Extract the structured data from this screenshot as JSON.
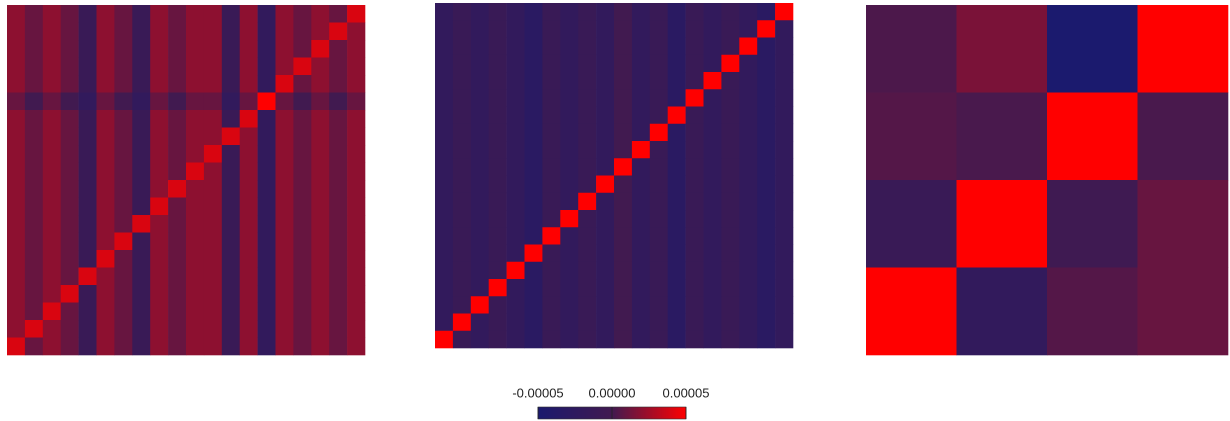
{
  "chart_data": [
    {
      "type": "heatmap",
      "z": [
        [
          2e-05,
          1e-05,
          2e-05,
          1e-05,
          -1e-05,
          2e-05,
          1e-05,
          -1e-05,
          2e-05,
          1e-05,
          2e-05,
          2e-05,
          -1e-05,
          2e-05,
          -2e-05,
          2e-05,
          1e-05,
          2e-05,
          1e-05,
          4e-05
        ],
        [
          2e-05,
          1e-05,
          2e-05,
          1e-05,
          -1e-05,
          2e-05,
          1e-05,
          -1e-05,
          2e-05,
          1e-05,
          2e-05,
          2e-05,
          -1e-05,
          2e-05,
          -2e-05,
          2e-05,
          1e-05,
          2e-05,
          4e-05,
          2e-05
        ],
        [
          2e-05,
          1e-05,
          2e-05,
          1e-05,
          -1e-05,
          2e-05,
          1e-05,
          -1e-05,
          2e-05,
          1e-05,
          2e-05,
          2e-05,
          -1e-05,
          2e-05,
          -2e-05,
          2e-05,
          1e-05,
          4e-05,
          1e-05,
          2e-05
        ],
        [
          2e-05,
          1e-05,
          2e-05,
          1e-05,
          -1e-05,
          2e-05,
          1e-05,
          -1e-05,
          2e-05,
          1e-05,
          2e-05,
          2e-05,
          -1e-05,
          2e-05,
          -2e-05,
          2e-05,
          4e-05,
          2e-05,
          1e-05,
          2e-05
        ],
        [
          2e-05,
          1e-05,
          2e-05,
          1e-05,
          -1e-05,
          2e-05,
          1e-05,
          -1e-05,
          2e-05,
          1e-05,
          2e-05,
          2e-05,
          -1e-05,
          2e-05,
          -2e-05,
          4e-05,
          1e-05,
          2e-05,
          1e-05,
          2e-05
        ],
        [
          1e-05,
          0,
          1e-05,
          0,
          -2e-05,
          1e-05,
          0,
          -2e-05,
          1e-05,
          0,
          1e-05,
          1e-05,
          -2e-05,
          1e-05,
          5e-05,
          1e-05,
          0,
          1e-05,
          0,
          1e-05
        ],
        [
          2e-05,
          1e-05,
          2e-05,
          1e-05,
          -1e-05,
          2e-05,
          1e-05,
          -1e-05,
          2e-05,
          1e-05,
          2e-05,
          2e-05,
          -1e-05,
          4e-05,
          -2e-05,
          2e-05,
          1e-05,
          2e-05,
          1e-05,
          2e-05
        ],
        [
          2e-05,
          1e-05,
          2e-05,
          1e-05,
          -1e-05,
          2e-05,
          1e-05,
          -1e-05,
          2e-05,
          1e-05,
          2e-05,
          2e-05,
          4e-05,
          2e-05,
          -2e-05,
          2e-05,
          1e-05,
          2e-05,
          1e-05,
          2e-05
        ],
        [
          2e-05,
          1e-05,
          2e-05,
          1e-05,
          -1e-05,
          2e-05,
          1e-05,
          -1e-05,
          2e-05,
          1e-05,
          2e-05,
          4e-05,
          -1e-05,
          2e-05,
          -2e-05,
          2e-05,
          1e-05,
          2e-05,
          1e-05,
          2e-05
        ],
        [
          2e-05,
          1e-05,
          2e-05,
          1e-05,
          -1e-05,
          2e-05,
          1e-05,
          -1e-05,
          2e-05,
          1e-05,
          4e-05,
          2e-05,
          -1e-05,
          2e-05,
          -2e-05,
          2e-05,
          1e-05,
          2e-05,
          1e-05,
          2e-05
        ],
        [
          2e-05,
          1e-05,
          2e-05,
          1e-05,
          -1e-05,
          2e-05,
          1e-05,
          -1e-05,
          2e-05,
          4e-05,
          2e-05,
          2e-05,
          -1e-05,
          2e-05,
          -2e-05,
          2e-05,
          1e-05,
          2e-05,
          1e-05,
          2e-05
        ],
        [
          2e-05,
          1e-05,
          2e-05,
          1e-05,
          -1e-05,
          2e-05,
          1e-05,
          -1e-05,
          4e-05,
          1e-05,
          2e-05,
          2e-05,
          -1e-05,
          2e-05,
          -2e-05,
          2e-05,
          1e-05,
          2e-05,
          1e-05,
          2e-05
        ],
        [
          2e-05,
          1e-05,
          2e-05,
          1e-05,
          -1e-05,
          2e-05,
          1e-05,
          4e-05,
          2e-05,
          1e-05,
          2e-05,
          2e-05,
          -1e-05,
          2e-05,
          -2e-05,
          2e-05,
          1e-05,
          2e-05,
          1e-05,
          2e-05
        ],
        [
          2e-05,
          1e-05,
          2e-05,
          1e-05,
          -1e-05,
          2e-05,
          4e-05,
          -1e-05,
          2e-05,
          1e-05,
          2e-05,
          2e-05,
          -1e-05,
          2e-05,
          -2e-05,
          2e-05,
          1e-05,
          2e-05,
          1e-05,
          2e-05
        ],
        [
          2e-05,
          1e-05,
          2e-05,
          1e-05,
          -1e-05,
          4e-05,
          1e-05,
          -1e-05,
          2e-05,
          1e-05,
          2e-05,
          2e-05,
          -1e-05,
          2e-05,
          -2e-05,
          2e-05,
          1e-05,
          2e-05,
          1e-05,
          2e-05
        ],
        [
          2e-05,
          1e-05,
          2e-05,
          1e-05,
          4e-05,
          2e-05,
          1e-05,
          -1e-05,
          2e-05,
          1e-05,
          2e-05,
          2e-05,
          -1e-05,
          2e-05,
          -2e-05,
          2e-05,
          1e-05,
          2e-05,
          1e-05,
          2e-05
        ],
        [
          2e-05,
          1e-05,
          2e-05,
          4e-05,
          -1e-05,
          2e-05,
          1e-05,
          -1e-05,
          2e-05,
          1e-05,
          2e-05,
          2e-05,
          -1e-05,
          2e-05,
          -2e-05,
          2e-05,
          1e-05,
          2e-05,
          1e-05,
          2e-05
        ],
        [
          2e-05,
          1e-05,
          4e-05,
          1e-05,
          -1e-05,
          2e-05,
          1e-05,
          -1e-05,
          2e-05,
          1e-05,
          2e-05,
          2e-05,
          -1e-05,
          2e-05,
          -2e-05,
          2e-05,
          1e-05,
          2e-05,
          1e-05,
          2e-05
        ],
        [
          2e-05,
          4e-05,
          2e-05,
          1e-05,
          -1e-05,
          2e-05,
          1e-05,
          -1e-05,
          2e-05,
          1e-05,
          2e-05,
          2e-05,
          -1e-05,
          2e-05,
          -2e-05,
          2e-05,
          1e-05,
          2e-05,
          1e-05,
          2e-05
        ],
        [
          4e-05,
          1e-05,
          2e-05,
          1e-05,
          -1e-05,
          2e-05,
          1e-05,
          -1e-05,
          2e-05,
          1e-05,
          2e-05,
          2e-05,
          -1e-05,
          2e-05,
          -2e-05,
          2e-05,
          1e-05,
          2e-05,
          1e-05,
          2e-05
        ]
      ]
    },
    {
      "type": "heatmap",
      "z": [
        [
          -2e-05,
          -1e-05,
          -2e-05,
          -1e-05,
          -2e-05,
          -3e-05,
          -1e-05,
          -2e-05,
          -1e-05,
          -2e-05,
          0,
          -2e-05,
          -1e-05,
          -3e-05,
          -1e-05,
          -2e-05,
          -1e-05,
          -2e-05,
          -3e-05,
          5e-05
        ],
        [
          -2e-05,
          -1e-05,
          -2e-05,
          -1e-05,
          -2e-05,
          -3e-05,
          -1e-05,
          -2e-05,
          -1e-05,
          -2e-05,
          0,
          -2e-05,
          -1e-05,
          -3e-05,
          -1e-05,
          -2e-05,
          -1e-05,
          -2e-05,
          5e-05,
          -2e-05
        ],
        [
          -2e-05,
          -1e-05,
          -2e-05,
          -1e-05,
          -2e-05,
          -3e-05,
          -1e-05,
          -2e-05,
          -1e-05,
          -2e-05,
          0,
          -2e-05,
          -1e-05,
          -3e-05,
          -1e-05,
          -2e-05,
          -1e-05,
          5e-05,
          -3e-05,
          -2e-05
        ],
        [
          -2e-05,
          -1e-05,
          -2e-05,
          -1e-05,
          -2e-05,
          -3e-05,
          -1e-05,
          -2e-05,
          -1e-05,
          -2e-05,
          0,
          -2e-05,
          -1e-05,
          -3e-05,
          -1e-05,
          -2e-05,
          5e-05,
          -2e-05,
          -3e-05,
          -2e-05
        ],
        [
          -2e-05,
          -1e-05,
          -2e-05,
          -1e-05,
          -2e-05,
          -3e-05,
          -1e-05,
          -2e-05,
          -1e-05,
          -2e-05,
          0,
          -2e-05,
          -1e-05,
          -3e-05,
          -1e-05,
          5e-05,
          -1e-05,
          -2e-05,
          -3e-05,
          -2e-05
        ],
        [
          -2e-05,
          -1e-05,
          -2e-05,
          -1e-05,
          -2e-05,
          -3e-05,
          -1e-05,
          -2e-05,
          -1e-05,
          -2e-05,
          0,
          -2e-05,
          -1e-05,
          -3e-05,
          5e-05,
          -2e-05,
          -1e-05,
          -2e-05,
          -3e-05,
          -2e-05
        ],
        [
          -2e-05,
          -1e-05,
          -2e-05,
          -1e-05,
          -2e-05,
          -3e-05,
          -1e-05,
          -2e-05,
          -1e-05,
          -2e-05,
          0,
          -2e-05,
          -1e-05,
          5e-05,
          -1e-05,
          -2e-05,
          -1e-05,
          -2e-05,
          -3e-05,
          -2e-05
        ],
        [
          -2e-05,
          -1e-05,
          -2e-05,
          -1e-05,
          -2e-05,
          -3e-05,
          -1e-05,
          -2e-05,
          -1e-05,
          -2e-05,
          0,
          -2e-05,
          5e-05,
          -3e-05,
          -1e-05,
          -2e-05,
          -1e-05,
          -2e-05,
          -3e-05,
          -2e-05
        ],
        [
          -2e-05,
          -1e-05,
          -2e-05,
          -1e-05,
          -2e-05,
          -3e-05,
          -1e-05,
          -2e-05,
          -1e-05,
          -2e-05,
          0,
          5e-05,
          -1e-05,
          -3e-05,
          -1e-05,
          -2e-05,
          -1e-05,
          -2e-05,
          -3e-05,
          -2e-05
        ],
        [
          -2e-05,
          -1e-05,
          -2e-05,
          -1e-05,
          -2e-05,
          -3e-05,
          -1e-05,
          -2e-05,
          -1e-05,
          -2e-05,
          5e-05,
          -2e-05,
          -1e-05,
          -3e-05,
          -1e-05,
          -2e-05,
          -1e-05,
          -2e-05,
          -3e-05,
          -2e-05
        ],
        [
          -2e-05,
          -1e-05,
          -2e-05,
          -1e-05,
          -2e-05,
          -3e-05,
          -1e-05,
          -2e-05,
          -1e-05,
          5e-05,
          0,
          -2e-05,
          -1e-05,
          -3e-05,
          -1e-05,
          -2e-05,
          -1e-05,
          -2e-05,
          -3e-05,
          -2e-05
        ],
        [
          -2e-05,
          -1e-05,
          -2e-05,
          -1e-05,
          -2e-05,
          -3e-05,
          -1e-05,
          -2e-05,
          5e-05,
          -2e-05,
          0,
          -2e-05,
          -1e-05,
          -3e-05,
          -1e-05,
          -2e-05,
          -1e-05,
          -2e-05,
          -3e-05,
          -2e-05
        ],
        [
          -2e-05,
          -1e-05,
          -2e-05,
          -1e-05,
          -2e-05,
          -3e-05,
          -1e-05,
          5e-05,
          -1e-05,
          -2e-05,
          0,
          -2e-05,
          -1e-05,
          -3e-05,
          -1e-05,
          -2e-05,
          -1e-05,
          -2e-05,
          -3e-05,
          -2e-05
        ],
        [
          -2e-05,
          -1e-05,
          -2e-05,
          -1e-05,
          -2e-05,
          -3e-05,
          5e-05,
          -2e-05,
          -1e-05,
          -2e-05,
          0,
          -2e-05,
          -1e-05,
          -3e-05,
          -1e-05,
          -2e-05,
          -1e-05,
          -2e-05,
          -3e-05,
          -2e-05
        ],
        [
          -2e-05,
          -1e-05,
          -2e-05,
          -1e-05,
          -2e-05,
          5e-05,
          -1e-05,
          -2e-05,
          -1e-05,
          -2e-05,
          0,
          -2e-05,
          -1e-05,
          -3e-05,
          -1e-05,
          -2e-05,
          -1e-05,
          -2e-05,
          -3e-05,
          -2e-05
        ],
        [
          -2e-05,
          -1e-05,
          -2e-05,
          -1e-05,
          5e-05,
          -3e-05,
          -1e-05,
          -2e-05,
          -1e-05,
          -2e-05,
          0,
          -2e-05,
          -1e-05,
          -3e-05,
          -1e-05,
          -2e-05,
          -1e-05,
          -2e-05,
          -3e-05,
          -2e-05
        ],
        [
          -2e-05,
          -1e-05,
          -2e-05,
          5e-05,
          -2e-05,
          -3e-05,
          -1e-05,
          -2e-05,
          -1e-05,
          -2e-05,
          0,
          -2e-05,
          -1e-05,
          -3e-05,
          -1e-05,
          -2e-05,
          -1e-05,
          -2e-05,
          -3e-05,
          -2e-05
        ],
        [
          -2e-05,
          -1e-05,
          5e-05,
          -1e-05,
          -2e-05,
          -3e-05,
          -1e-05,
          -2e-05,
          -1e-05,
          -2e-05,
          0,
          -2e-05,
          -1e-05,
          -3e-05,
          -1e-05,
          -2e-05,
          -1e-05,
          -2e-05,
          -3e-05,
          -2e-05
        ],
        [
          -2e-05,
          5e-05,
          -2e-05,
          -1e-05,
          -2e-05,
          -3e-05,
          -1e-05,
          -2e-05,
          -1e-05,
          -2e-05,
          0,
          -2e-05,
          -1e-05,
          -3e-05,
          -1e-05,
          -2e-05,
          -1e-05,
          -2e-05,
          -3e-05,
          -2e-05
        ],
        [
          5e-05,
          -1e-05,
          -2e-05,
          -1e-05,
          -2e-05,
          -3e-05,
          -1e-05,
          -2e-05,
          -1e-05,
          -2e-05,
          0,
          -2e-05,
          -1e-05,
          -3e-05,
          -1e-05,
          -2e-05,
          -1e-05,
          -2e-05,
          -3e-05,
          -2e-05
        ]
      ]
    },
    {
      "type": "heatmap",
      "z": [
        [
          3e-06,
          1.5e-05,
          -5e-05,
          5e-05
        ],
        [
          5e-06,
          2e-06,
          5e-05,
          2e-06
        ],
        [
          -1e-05,
          5e-05,
          -3e-06,
          1e-05
        ],
        [
          5e-05,
          -2e-05,
          5e-06,
          1e-05
        ]
      ]
    }
  ],
  "colorbar": {
    "clim": [
      -5e-05,
      5e-05
    ],
    "colors": [
      "#1b1a6e",
      "#411a50",
      "#ff0000"
    ],
    "ticks": [
      {
        "value": -5e-05,
        "label": "-0.00005"
      },
      {
        "value": 0,
        "label": "0.00000"
      },
      {
        "value": 5e-05,
        "label": "0.00005"
      }
    ]
  }
}
